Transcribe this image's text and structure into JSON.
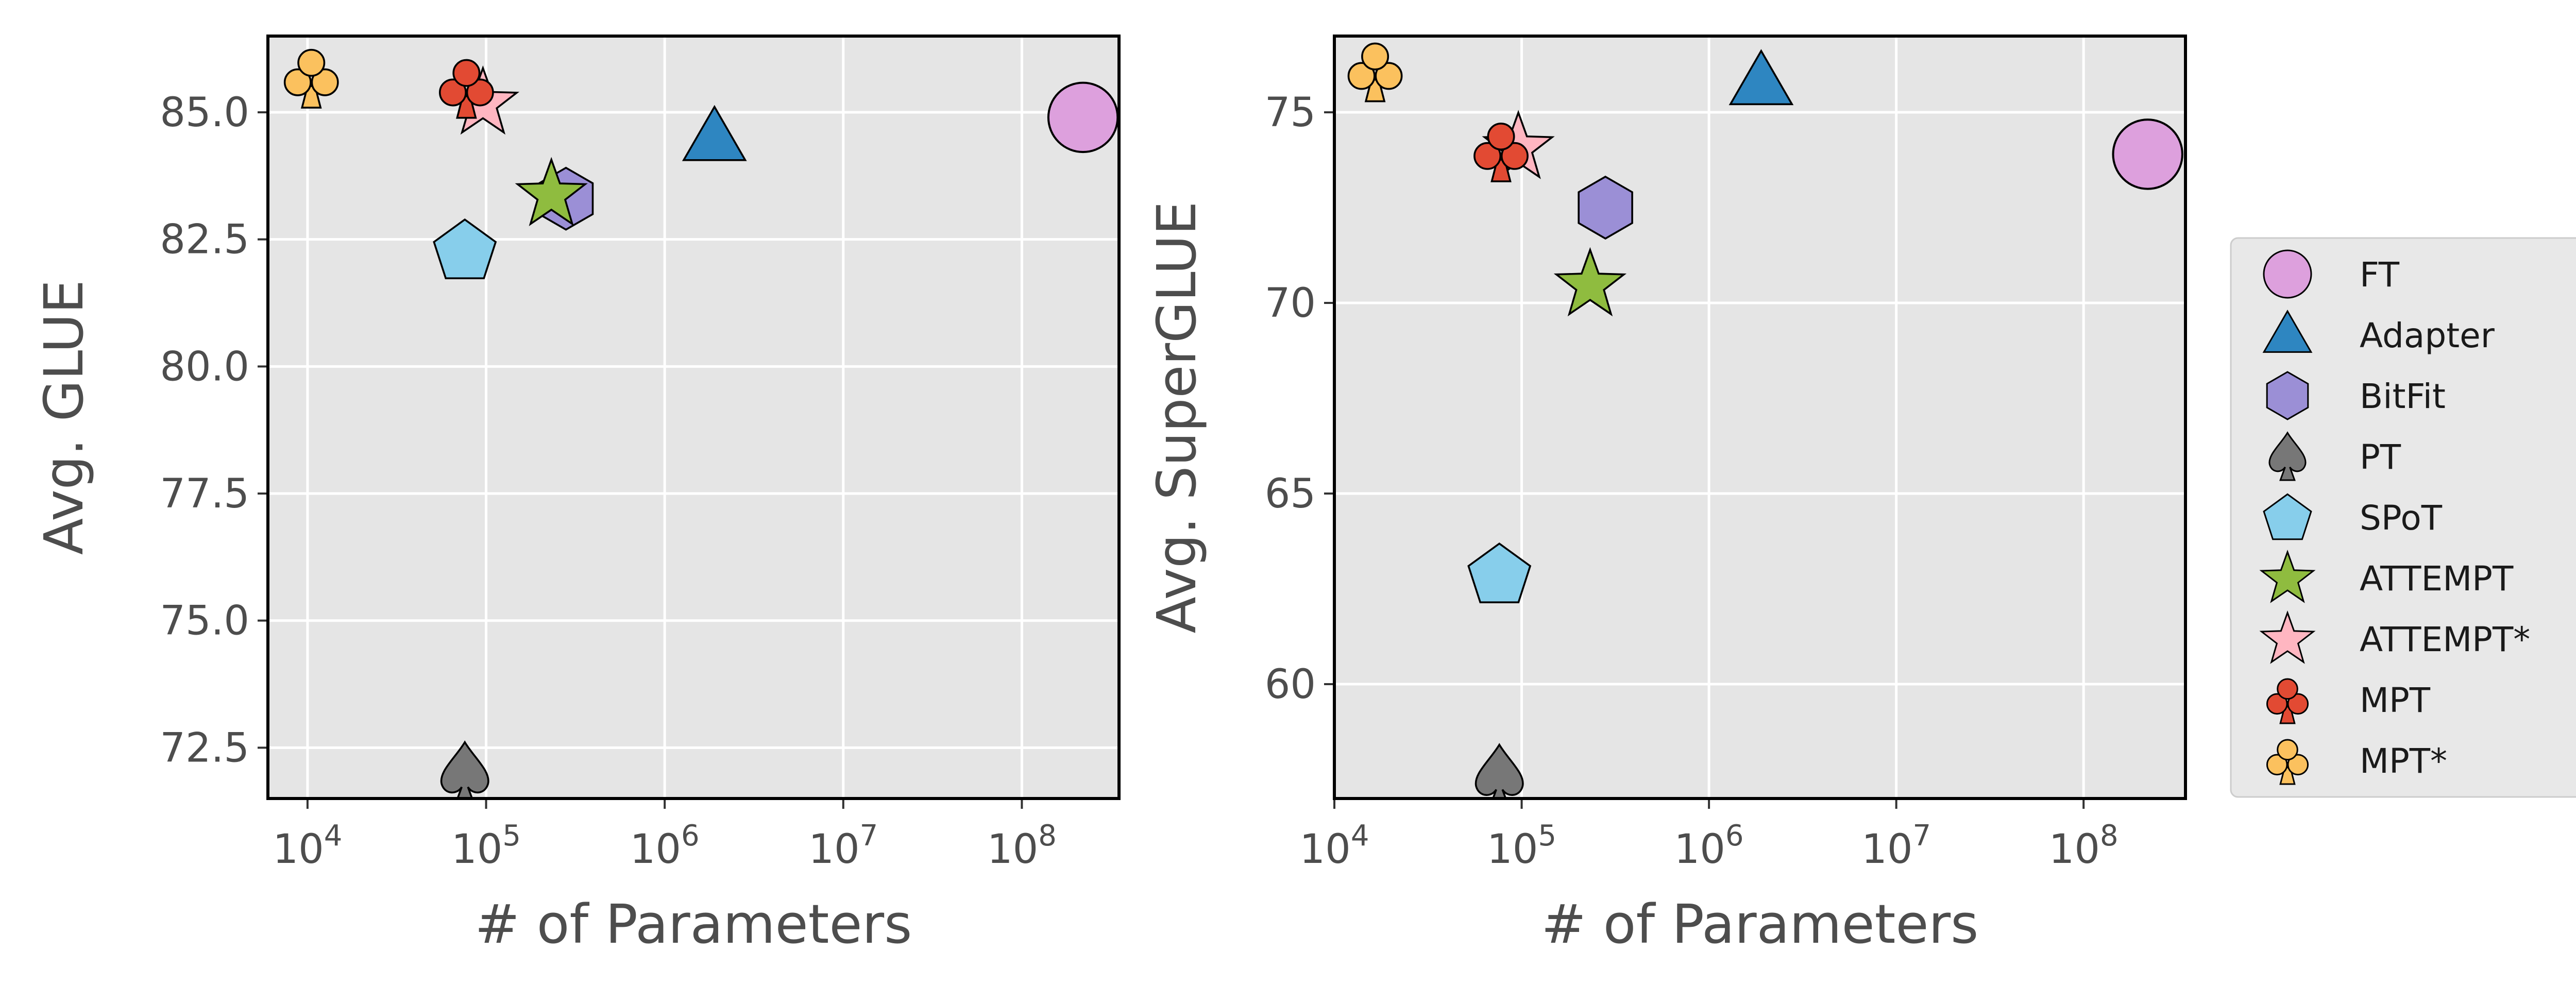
{
  "chart_data": [
    {
      "type": "scatter",
      "xlabel": "# of Parameters",
      "ylabel": "Avg. GLUE",
      "xscale": "log",
      "xlim": [
        6000,
        350000000
      ],
      "ylim": [
        71.5,
        86.5
      ],
      "yticks": [
        72.5,
        75.0,
        77.5,
        80.0,
        82.5,
        85.0
      ],
      "ytick_labels": [
        "72.5",
        "75.0",
        "77.5",
        "80.0",
        "82.5",
        "85.0"
      ],
      "xticks": [
        10000,
        100000,
        1000000,
        10000000,
        100000000
      ],
      "xtick_exponents": [
        "4",
        "5",
        "6",
        "7",
        "8"
      ],
      "grid": true,
      "points": [
        {
          "name": "FT",
          "x": 220000000,
          "y": 84.9
        },
        {
          "name": "Adapter",
          "x": 1900000,
          "y": 84.5
        },
        {
          "name": "BitFit",
          "x": 280000,
          "y": 83.3
        },
        {
          "name": "PT",
          "x": 76000,
          "y": 72.0
        },
        {
          "name": "SPoT",
          "x": 76000,
          "y": 82.3
        },
        {
          "name": "ATTEMPT",
          "x": 232000,
          "y": 83.4
        },
        {
          "name": "ATTEMPT*",
          "x": 96000,
          "y": 85.2
        },
        {
          "name": "MPT",
          "x": 77600,
          "y": 85.5
        },
        {
          "name": "MPT*",
          "x": 10500,
          "y": 85.7
        }
      ]
    },
    {
      "type": "scatter",
      "xlabel": "# of Parameters",
      "ylabel": "Avg. SuperGLUE",
      "xscale": "log",
      "xlim": [
        10000,
        350000000
      ],
      "ylim": [
        57,
        77
      ],
      "yticks": [
        60,
        65,
        70,
        75
      ],
      "ytick_labels": [
        "60",
        "65",
        "70",
        "75"
      ],
      "xticks": [
        10000,
        100000,
        1000000,
        10000000,
        100000000
      ],
      "xtick_exponents": [
        "4",
        "5",
        "6",
        "7",
        "8"
      ],
      "grid": true,
      "points": [
        {
          "name": "FT",
          "x": 220000000,
          "y": 73.9
        },
        {
          "name": "Adapter",
          "x": 1900000,
          "y": 75.8
        },
        {
          "name": "BitFit",
          "x": 280000,
          "y": 72.5
        },
        {
          "name": "PT",
          "x": 76000,
          "y": 57.6
        },
        {
          "name": "SPoT",
          "x": 76000,
          "y": 62.9
        },
        {
          "name": "ATTEMPT",
          "x": 232000,
          "y": 70.5
        },
        {
          "name": "ATTEMPT*",
          "x": 96000,
          "y": 74.1
        },
        {
          "name": "MPT",
          "x": 77600,
          "y": 74.0
        },
        {
          "name": "MPT*",
          "x": 16500,
          "y": 76.1
        }
      ]
    }
  ],
  "legend": {
    "placement": "right",
    "entries": [
      {
        "name": "FT",
        "marker": "circle",
        "color": "#dda0dd"
      },
      {
        "name": "Adapter",
        "marker": "triangle",
        "color": "#2e86c1"
      },
      {
        "name": "BitFit",
        "marker": "hexagon",
        "color": "#9b8fd6"
      },
      {
        "name": "PT",
        "marker": "spade",
        "color": "#777777"
      },
      {
        "name": "SPoT",
        "marker": "pentagon",
        "color": "#87ceeb"
      },
      {
        "name": "ATTEMPT",
        "marker": "star",
        "color": "#8fbc3f"
      },
      {
        "name": "ATTEMPT*",
        "marker": "star",
        "color": "#ffb6c1"
      },
      {
        "name": "MPT",
        "marker": "club",
        "color": "#e24a33"
      },
      {
        "name": "MPT*",
        "marker": "club",
        "color": "#fbc15e"
      }
    ]
  },
  "colors": {
    "axes_background": "#e5e5e5",
    "grid": "#ffffff",
    "spine": "#000000",
    "text": "#4d4d4d"
  }
}
